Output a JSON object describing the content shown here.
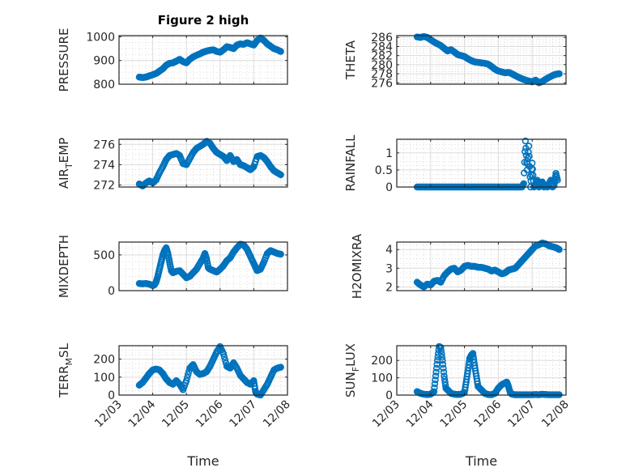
{
  "figure_title": "Figure 2 high",
  "marker_color": "#0072BD",
  "chart_data": [
    {
      "type": "scatter",
      "id": "pressure",
      "title": "Figure 2 high",
      "xlabel": "",
      "ylabel": "PRESSURE",
      "ylabel_parts": [
        "PRESSURE"
      ],
      "xlim": [
        0,
        5
      ],
      "ylim": [
        800,
        1005
      ],
      "yticks": [
        800,
        900,
        1000
      ],
      "ytick_labels": [
        "800",
        "900",
        "1000"
      ],
      "xticks": [
        0,
        1,
        2,
        3,
        4,
        5
      ],
      "xtick_labels": [],
      "grid": true,
      "minor_grid": true,
      "x": [
        0.6,
        0.7,
        0.8,
        0.9,
        1.0,
        1.1,
        1.2,
        1.3,
        1.4,
        1.5,
        1.6,
        1.7,
        1.8,
        1.9,
        2.0,
        2.1,
        2.2,
        2.3,
        2.4,
        2.5,
        2.6,
        2.7,
        2.8,
        2.9,
        3.0,
        3.1,
        3.2,
        3.3,
        3.4,
        3.5,
        3.6,
        3.7,
        3.8,
        3.9,
        4.0,
        4.1,
        4.2,
        4.3,
        4.4,
        4.5,
        4.6,
        4.7,
        4.8
      ],
      "y": [
        830,
        828,
        830,
        835,
        840,
        845,
        855,
        865,
        880,
        888,
        890,
        897,
        905,
        895,
        890,
        905,
        915,
        922,
        928,
        935,
        940,
        943,
        945,
        938,
        935,
        945,
        958,
        955,
        950,
        965,
        970,
        968,
        975,
        970,
        965,
        985,
        995,
        985,
        970,
        960,
        950,
        945,
        938
      ]
    },
    {
      "type": "scatter",
      "id": "theta",
      "xlabel": "",
      "ylabel": "THETA",
      "ylabel_parts": [
        "THETA"
      ],
      "xlim": [
        0,
        5
      ],
      "ylim": [
        275.7,
        286.4
      ],
      "yticks": [
        276,
        278,
        280,
        282,
        284,
        286
      ],
      "ytick_labels": [
        "276",
        "278",
        "280",
        "282",
        "284",
        "286"
      ],
      "xticks": [
        0,
        1,
        2,
        3,
        4,
        5
      ],
      "xtick_labels": [],
      "grid": true,
      "minor_grid": true,
      "x": [
        0.6,
        0.7,
        0.8,
        0.9,
        1.0,
        1.1,
        1.2,
        1.3,
        1.4,
        1.5,
        1.6,
        1.7,
        1.8,
        1.9,
        2.0,
        2.1,
        2.2,
        2.3,
        2.4,
        2.5,
        2.6,
        2.7,
        2.8,
        2.9,
        3.0,
        3.1,
        3.2,
        3.3,
        3.4,
        3.5,
        3.6,
        3.7,
        3.8,
        3.9,
        4.0,
        4.1,
        4.2,
        4.3,
        4.4,
        4.5,
        4.6,
        4.7,
        4.8
      ],
      "y": [
        286.1,
        286.0,
        286.2,
        286.0,
        285.5,
        285.0,
        284.6,
        284.2,
        283.6,
        283.0,
        283.3,
        282.8,
        282.2,
        282.0,
        281.8,
        281.3,
        280.9,
        280.6,
        280.5,
        280.4,
        280.3,
        280.1,
        279.6,
        279.0,
        278.6,
        278.4,
        278.2,
        278.3,
        278.0,
        277.6,
        277.2,
        276.9,
        276.6,
        276.4,
        276.2,
        276.6,
        276.0,
        276.3,
        276.8,
        277.2,
        277.6,
        277.9,
        278.0
      ]
    },
    {
      "type": "scatter",
      "id": "air_temp",
      "xlabel": "",
      "ylabel": "AIR_TEMP",
      "ylabel_parts": [
        "AIR",
        "T",
        "EMP"
      ],
      "xlim": [
        0,
        5
      ],
      "ylim": [
        271.8,
        276.5
      ],
      "yticks": [
        272,
        274,
        276
      ],
      "ytick_labels": [
        "272",
        "274",
        "276"
      ],
      "xticks": [
        0,
        1,
        2,
        3,
        4,
        5
      ],
      "xtick_labels": [],
      "grid": true,
      "minor_grid": true,
      "x": [
        0.6,
        0.7,
        0.8,
        0.9,
        1.0,
        1.1,
        1.2,
        1.3,
        1.4,
        1.5,
        1.6,
        1.7,
        1.8,
        1.9,
        2.0,
        2.1,
        2.2,
        2.3,
        2.4,
        2.5,
        2.6,
        2.7,
        2.8,
        2.9,
        3.0,
        3.1,
        3.2,
        3.3,
        3.4,
        3.5,
        3.6,
        3.7,
        3.8,
        3.9,
        4.0,
        4.1,
        4.2,
        4.3,
        4.4,
        4.5,
        4.6,
        4.7,
        4.8
      ],
      "y": [
        272.1,
        271.9,
        272.2,
        272.4,
        272.2,
        272.5,
        273.2,
        273.8,
        274.5,
        274.9,
        275.0,
        275.1,
        274.9,
        274.1,
        274.0,
        274.6,
        275.2,
        275.6,
        275.8,
        276.0,
        276.3,
        276.1,
        275.6,
        275.2,
        275.0,
        274.8,
        274.4,
        274.9,
        274.3,
        274.5,
        274.0,
        273.9,
        273.7,
        273.5,
        273.8,
        274.8,
        274.9,
        274.7,
        274.3,
        273.8,
        273.4,
        273.2,
        273.0
      ]
    },
    {
      "type": "scatter",
      "id": "rainfall",
      "xlabel": "",
      "ylabel": "RAINFALL",
      "ylabel_parts": [
        "RAINFALL"
      ],
      "xlim": [
        0,
        5
      ],
      "ylim": [
        0,
        1.4
      ],
      "yticks": [
        0,
        0.5,
        1
      ],
      "ytick_labels": [
        "0",
        "0.5",
        "1"
      ],
      "xticks": [
        0,
        1,
        2,
        3,
        4,
        5
      ],
      "xtick_labels": [],
      "grid": true,
      "minor_grid": true,
      "x": [
        0.6,
        0.7,
        0.8,
        0.9,
        1.0,
        1.1,
        1.2,
        1.3,
        1.4,
        1.5,
        1.6,
        1.7,
        1.8,
        1.9,
        2.0,
        2.1,
        2.2,
        2.3,
        2.4,
        2.5,
        2.6,
        2.7,
        2.8,
        2.9,
        3.0,
        3.1,
        3.2,
        3.3,
        3.4,
        3.5,
        3.6,
        3.7,
        3.75,
        3.8,
        3.85,
        3.9,
        3.95,
        4.0,
        4.05,
        4.1,
        4.15,
        4.2,
        4.25,
        4.3,
        4.35,
        4.4,
        4.45,
        4.5,
        4.55,
        4.6,
        4.65,
        4.7,
        4.75
      ],
      "y": [
        0,
        0,
        0,
        0,
        0,
        0,
        0,
        0,
        0,
        0,
        0,
        0,
        0,
        0,
        0,
        0,
        0,
        0,
        0,
        0,
        0,
        0,
        0,
        0,
        0,
        0,
        0,
        0,
        0,
        0,
        0,
        0,
        0.1,
        1.35,
        0.5,
        1.2,
        0,
        0.7,
        0,
        0.05,
        0.2,
        0,
        0.1,
        0.15,
        0,
        0.05,
        0,
        0.1,
        0.2,
        0,
        0.05,
        0.4,
        0.2
      ]
    },
    {
      "type": "scatter",
      "id": "mixdepth",
      "xlabel": "",
      "ylabel": "MIXDEPTH",
      "ylabel_parts": [
        "MIXDEPTH"
      ],
      "xlim": [
        0,
        5
      ],
      "ylim": [
        0,
        680
      ],
      "yticks": [
        0,
        500
      ],
      "ytick_labels": [
        "0",
        "500"
      ],
      "xticks": [
        0,
        1,
        2,
        3,
        4,
        5
      ],
      "xtick_labels": [],
      "grid": true,
      "minor_grid": true,
      "x": [
        0.6,
        0.7,
        0.8,
        0.9,
        1.0,
        1.05,
        1.1,
        1.15,
        1.2,
        1.25,
        1.3,
        1.35,
        1.4,
        1.45,
        1.5,
        1.55,
        1.6,
        1.7,
        1.8,
        1.9,
        2.0,
        2.1,
        2.2,
        2.3,
        2.4,
        2.5,
        2.55,
        2.6,
        2.65,
        2.7,
        2.8,
        2.9,
        3.0,
        3.1,
        3.2,
        3.3,
        3.4,
        3.5,
        3.6,
        3.7,
        3.8,
        3.9,
        4.0,
        4.05,
        4.1,
        4.2,
        4.3,
        4.4,
        4.5,
        4.6,
        4.7,
        4.8
      ],
      "y": [
        100,
        95,
        100,
        90,
        70,
        80,
        120,
        200,
        300,
        400,
        500,
        560,
        600,
        520,
        400,
        280,
        250,
        270,
        280,
        230,
        180,
        200,
        250,
        300,
        380,
        460,
        520,
        440,
        320,
        300,
        280,
        260,
        300,
        350,
        420,
        460,
        540,
        600,
        650,
        640,
        580,
        480,
        380,
        330,
        280,
        300,
        400,
        520,
        560,
        540,
        520,
        510
      ]
    },
    {
      "type": "scatter",
      "id": "h2omixra",
      "xlabel": "",
      "ylabel": "H2OMIXRA",
      "ylabel_parts": [
        "H2OMIXRA"
      ],
      "xlim": [
        0,
        5
      ],
      "ylim": [
        1.8,
        4.4
      ],
      "yticks": [
        2,
        3,
        4
      ],
      "ytick_labels": [
        "2",
        "3",
        "4"
      ],
      "xticks": [
        0,
        1,
        2,
        3,
        4,
        5
      ],
      "xtick_labels": [],
      "grid": true,
      "minor_grid": true,
      "x": [
        0.6,
        0.7,
        0.8,
        0.9,
        1.0,
        1.1,
        1.2,
        1.3,
        1.4,
        1.5,
        1.6,
        1.7,
        1.8,
        1.9,
        2.0,
        2.1,
        2.2,
        2.3,
        2.4,
        2.5,
        2.6,
        2.7,
        2.8,
        2.9,
        3.0,
        3.1,
        3.2,
        3.3,
        3.4,
        3.5,
        3.6,
        3.7,
        3.8,
        3.9,
        4.0,
        4.1,
        4.2,
        4.3,
        4.4,
        4.5,
        4.6,
        4.7,
        4.8
      ],
      "y": [
        2.25,
        2.1,
        2.0,
        2.15,
        2.1,
        2.3,
        2.35,
        2.25,
        2.6,
        2.8,
        2.95,
        3.0,
        2.8,
        2.9,
        3.1,
        3.15,
        3.1,
        3.1,
        3.05,
        3.05,
        3.0,
        2.95,
        2.85,
        2.9,
        2.8,
        2.7,
        2.75,
        2.9,
        2.95,
        3.0,
        3.2,
        3.4,
        3.6,
        3.8,
        4.0,
        4.2,
        4.25,
        4.35,
        4.3,
        4.2,
        4.15,
        4.1,
        4.0
      ]
    },
    {
      "type": "scatter",
      "id": "terr_msl",
      "xlabel": "Time",
      "ylabel": "TERR_MSL",
      "ylabel_parts": [
        "TERR",
        "M",
        "SL"
      ],
      "xlim": [
        0,
        5
      ],
      "ylim": [
        0,
        275
      ],
      "yticks": [
        0,
        100,
        200
      ],
      "ytick_labels": [
        "0",
        "100",
        "200"
      ],
      "xticks": [
        0,
        1,
        2,
        3,
        4,
        5
      ],
      "xtick_labels": [
        "12/03",
        "12/04",
        "12/05",
        "12/06",
        "12/07",
        "12/08"
      ],
      "grid": true,
      "minor_grid": true,
      "x": [
        0.6,
        0.7,
        0.8,
        0.9,
        1.0,
        1.1,
        1.2,
        1.3,
        1.4,
        1.5,
        1.6,
        1.7,
        1.8,
        1.9,
        2.0,
        2.1,
        2.2,
        2.3,
        2.4,
        2.5,
        2.6,
        2.7,
        2.8,
        2.9,
        3.0,
        3.1,
        3.2,
        3.3,
        3.4,
        3.5,
        3.6,
        3.7,
        3.8,
        3.9,
        4.0,
        4.05,
        4.1,
        4.2,
        4.3,
        4.4,
        4.5,
        4.6,
        4.7,
        4.8
      ],
      "y": [
        55,
        70,
        95,
        120,
        140,
        145,
        140,
        120,
        90,
        70,
        60,
        80,
        60,
        30,
        80,
        150,
        170,
        130,
        115,
        120,
        130,
        160,
        200,
        240,
        270,
        230,
        160,
        150,
        180,
        150,
        110,
        90,
        70,
        60,
        80,
        20,
        5,
        0,
        30,
        60,
        100,
        140,
        150,
        155
      ]
    },
    {
      "type": "scatter",
      "id": "sun_flux",
      "xlabel": "Time",
      "ylabel": "SUN_FLUX",
      "ylabel_parts": [
        "SUN",
        "F",
        "LUX"
      ],
      "xlim": [
        0,
        5
      ],
      "ylim": [
        0,
        285
      ],
      "yticks": [
        0,
        100,
        200
      ],
      "ytick_labels": [
        "0",
        "100",
        "200"
      ],
      "xticks": [
        0,
        1,
        2,
        3,
        4,
        5
      ],
      "xtick_labels": [
        "12/03",
        "12/04",
        "12/05",
        "12/06",
        "12/07",
        "12/08"
      ],
      "grid": true,
      "minor_grid": true,
      "x": [
        0.6,
        0.7,
        0.8,
        0.9,
        1.0,
        1.1,
        1.15,
        1.2,
        1.25,
        1.3,
        1.35,
        1.4,
        1.45,
        1.5,
        1.55,
        1.6,
        1.7,
        1.8,
        1.9,
        2.0,
        2.05,
        2.1,
        2.15,
        2.2,
        2.25,
        2.3,
        2.35,
        2.4,
        2.5,
        2.6,
        2.7,
        2.8,
        2.9,
        3.0,
        3.1,
        3.2,
        3.25,
        3.3,
        3.35,
        3.4,
        3.5,
        3.6,
        3.7,
        3.8,
        3.9,
        4.0,
        4.1,
        4.2,
        4.3,
        4.4,
        4.5,
        4.6,
        4.7,
        4.8
      ],
      "y": [
        20,
        10,
        5,
        3,
        5,
        20,
        110,
        200,
        280,
        275,
        200,
        110,
        40,
        30,
        20,
        10,
        5,
        3,
        5,
        15,
        75,
        140,
        210,
        230,
        240,
        170,
        110,
        50,
        30,
        10,
        3,
        2,
        10,
        40,
        60,
        70,
        75,
        50,
        15,
        5,
        2,
        2,
        2,
        2,
        2,
        2,
        3,
        2,
        5,
        3,
        2,
        2,
        2,
        2
      ]
    }
  ]
}
